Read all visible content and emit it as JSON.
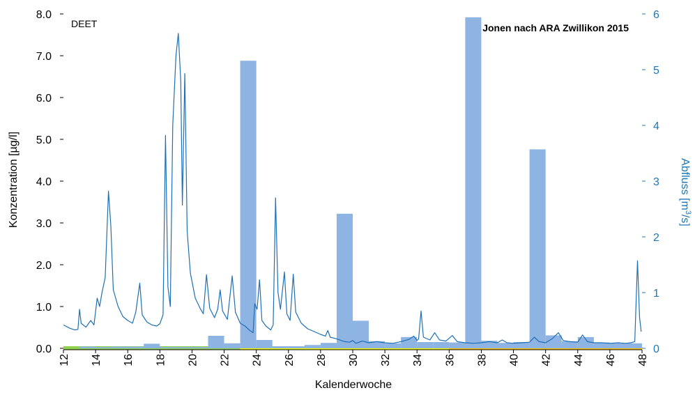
{
  "chart_data": {
    "type": "bar",
    "title": "Jonen nach ARA Zwillikon 2015",
    "annotation": "DEET",
    "xlabel": "Kalenderwoche",
    "ylabel": "Konzentration [µg/l]",
    "y2label_parts": [
      "Abfluss [m",
      "3",
      "/s]"
    ],
    "xlim": [
      12,
      48
    ],
    "ylim": [
      0,
      8
    ],
    "y2lim": [
      0,
      6
    ],
    "x_ticks": [
      12,
      14,
      16,
      18,
      20,
      22,
      24,
      26,
      28,
      30,
      32,
      34,
      36,
      38,
      40,
      42,
      44,
      46,
      48
    ],
    "y_ticks": [
      "0.0",
      "1.0",
      "2.0",
      "3.0",
      "4.0",
      "5.0",
      "6.0",
      "7.0",
      "8.0"
    ],
    "y2_ticks": [
      "0",
      "1",
      "2",
      "3",
      "4",
      "5",
      "6"
    ],
    "colors": {
      "bars": "#8eb4e3",
      "line": "#1f6fb4",
      "right_axis": "#1f77b4",
      "strip_green": "#92d050",
      "strip_yellow": "#ffff00",
      "strip_orange": "#ffc000"
    },
    "series": [
      {
        "name": "Konzentration",
        "axis": "left",
        "kind": "bar",
        "values": [
          {
            "x0": 13,
            "x1": 14,
            "y": 0.04
          },
          {
            "x0": 14,
            "x1": 15,
            "y": 0.03
          },
          {
            "x0": 15,
            "x1": 16,
            "y": 0.04
          },
          {
            "x0": 16,
            "x1": 17,
            "y": 0.04
          },
          {
            "x0": 17,
            "x1": 18,
            "y": 0.11
          },
          {
            "x0": 18,
            "x1": 19,
            "y": 0.03
          },
          {
            "x0": 19,
            "x1": 20,
            "y": 0.03
          },
          {
            "x0": 20,
            "x1": 21,
            "y": 0.03
          },
          {
            "x0": 21,
            "x1": 22,
            "y": 0.3
          },
          {
            "x0": 22,
            "x1": 23,
            "y": 0.12
          },
          {
            "x0": 23,
            "x1": 24,
            "y": 6.88
          },
          {
            "x0": 24,
            "x1": 25,
            "y": 0.2
          },
          {
            "x0": 25,
            "x1": 26,
            "y": 0.05
          },
          {
            "x0": 26,
            "x1": 27,
            "y": 0.05
          },
          {
            "x0": 27,
            "x1": 28,
            "y": 0.08
          },
          {
            "x0": 28,
            "x1": 29,
            "y": 0.13
          },
          {
            "x0": 29,
            "x1": 30,
            "y": 3.22
          },
          {
            "x0": 30,
            "x1": 31,
            "y": 0.66
          },
          {
            "x0": 31,
            "x1": 32,
            "y": 0.17
          },
          {
            "x0": 32,
            "x1": 33,
            "y": 0.12
          },
          {
            "x0": 33,
            "x1": 34,
            "y": 0.27
          },
          {
            "x0": 34,
            "x1": 35,
            "y": 0.15
          },
          {
            "x0": 35,
            "x1": 36,
            "y": 0.15
          },
          {
            "x0": 36,
            "x1": 37,
            "y": 0.14
          },
          {
            "x0": 37,
            "x1": 38,
            "y": 7.92
          },
          {
            "x0": 38,
            "x1": 39,
            "y": 0.18
          },
          {
            "x0": 39,
            "x1": 40,
            "y": 0.13
          },
          {
            "x0": 40,
            "x1": 41,
            "y": 0.15
          },
          {
            "x0": 41,
            "x1": 42,
            "y": 4.76
          },
          {
            "x0": 42,
            "x1": 43,
            "y": 0.31
          },
          {
            "x0": 43,
            "x1": 44,
            "y": 0.17
          },
          {
            "x0": 44,
            "x1": 45,
            "y": 0.27
          },
          {
            "x0": 45,
            "x1": 46,
            "y": 0.14
          },
          {
            "x0": 46,
            "x1": 47,
            "y": 0.12
          },
          {
            "x0": 47,
            "x1": 48,
            "y": 0.12
          }
        ]
      },
      {
        "name": "Abfluss",
        "axis": "right",
        "kind": "line",
        "points": [
          [
            12.0,
            0.42
          ],
          [
            12.4,
            0.36
          ],
          [
            12.7,
            0.33
          ],
          [
            12.9,
            0.34
          ],
          [
            13.0,
            0.7
          ],
          [
            13.1,
            0.45
          ],
          [
            13.4,
            0.38
          ],
          [
            13.7,
            0.5
          ],
          [
            13.9,
            0.42
          ],
          [
            14.1,
            0.9
          ],
          [
            14.25,
            0.75
          ],
          [
            14.4,
            1.0
          ],
          [
            14.6,
            1.27
          ],
          [
            14.8,
            2.82
          ],
          [
            14.95,
            2.2
          ],
          [
            15.1,
            1.05
          ],
          [
            15.4,
            0.75
          ],
          [
            15.7,
            0.57
          ],
          [
            16.0,
            0.5
          ],
          [
            16.3,
            0.45
          ],
          [
            16.5,
            0.65
          ],
          [
            16.75,
            1.17
          ],
          [
            16.9,
            0.6
          ],
          [
            17.2,
            0.47
          ],
          [
            17.5,
            0.42
          ],
          [
            17.8,
            0.4
          ],
          [
            18.0,
            0.44
          ],
          [
            18.2,
            0.6
          ],
          [
            18.35,
            3.82
          ],
          [
            18.5,
            1.1
          ],
          [
            18.65,
            0.75
          ],
          [
            18.8,
            4.0
          ],
          [
            19.0,
            5.25
          ],
          [
            19.15,
            5.65
          ],
          [
            19.3,
            4.8
          ],
          [
            19.4,
            2.57
          ],
          [
            19.55,
            4.93
          ],
          [
            19.7,
            2.1
          ],
          [
            19.9,
            1.35
          ],
          [
            20.2,
            0.9
          ],
          [
            20.5,
            0.72
          ],
          [
            20.7,
            0.62
          ],
          [
            20.9,
            1.32
          ],
          [
            21.1,
            0.72
          ],
          [
            21.4,
            0.55
          ],
          [
            21.6,
            0.7
          ],
          [
            21.75,
            1.05
          ],
          [
            21.9,
            0.67
          ],
          [
            22.2,
            0.52
          ],
          [
            22.5,
            1.3
          ],
          [
            22.7,
            0.65
          ],
          [
            23.0,
            0.45
          ],
          [
            23.3,
            0.4
          ],
          [
            23.6,
            0.32
          ],
          [
            23.8,
            0.28
          ],
          [
            23.9,
            0.8
          ],
          [
            24.05,
            0.7
          ],
          [
            24.2,
            1.23
          ],
          [
            24.35,
            0.5
          ],
          [
            24.6,
            0.4
          ],
          [
            24.9,
            0.33
          ],
          [
            25.05,
            0.42
          ],
          [
            25.2,
            2.7
          ],
          [
            25.35,
            1.0
          ],
          [
            25.5,
            0.7
          ],
          [
            25.75,
            1.37
          ],
          [
            25.9,
            0.62
          ],
          [
            26.1,
            0.5
          ],
          [
            26.3,
            1.33
          ],
          [
            26.45,
            0.65
          ],
          [
            26.8,
            0.45
          ],
          [
            27.2,
            0.35
          ],
          [
            27.6,
            0.3
          ],
          [
            28.0,
            0.25
          ],
          [
            28.3,
            0.22
          ],
          [
            28.45,
            0.32
          ],
          [
            28.6,
            0.2
          ],
          [
            29.0,
            0.17
          ],
          [
            29.5,
            0.12
          ],
          [
            29.8,
            0.11
          ],
          [
            30.0,
            0.14
          ],
          [
            30.2,
            0.09
          ],
          [
            30.6,
            0.13
          ],
          [
            31.0,
            0.1
          ],
          [
            31.5,
            0.12
          ],
          [
            32.0,
            0.1
          ],
          [
            32.5,
            0.09
          ],
          [
            33.0,
            0.12
          ],
          [
            33.5,
            0.16
          ],
          [
            33.8,
            0.22
          ],
          [
            34.0,
            0.14
          ],
          [
            34.1,
            0.17
          ],
          [
            34.25,
            0.67
          ],
          [
            34.4,
            0.2
          ],
          [
            34.8,
            0.15
          ],
          [
            35.1,
            0.28
          ],
          [
            35.4,
            0.15
          ],
          [
            35.8,
            0.13
          ],
          [
            36.2,
            0.23
          ],
          [
            36.5,
            0.12
          ],
          [
            37.0,
            0.1
          ],
          [
            37.5,
            0.09
          ],
          [
            38.0,
            0.1
          ],
          [
            38.5,
            0.12
          ],
          [
            39.0,
            0.1
          ],
          [
            39.3,
            0.15
          ],
          [
            39.6,
            0.1
          ],
          [
            40.0,
            0.09
          ],
          [
            40.5,
            0.1
          ],
          [
            41.0,
            0.11
          ],
          [
            41.3,
            0.2
          ],
          [
            41.6,
            0.12
          ],
          [
            42.0,
            0.1
          ],
          [
            42.4,
            0.17
          ],
          [
            42.8,
            0.28
          ],
          [
            43.1,
            0.14
          ],
          [
            43.5,
            0.12
          ],
          [
            44.0,
            0.11
          ],
          [
            44.3,
            0.24
          ],
          [
            44.6,
            0.12
          ],
          [
            45.0,
            0.1
          ],
          [
            45.5,
            0.1
          ],
          [
            46.0,
            0.09
          ],
          [
            46.5,
            0.1
          ],
          [
            47.0,
            0.09
          ],
          [
            47.3,
            0.1
          ],
          [
            47.55,
            0.12
          ],
          [
            47.72,
            1.57
          ],
          [
            47.85,
            0.55
          ],
          [
            47.95,
            0.3
          ]
        ]
      }
    ],
    "season_strip": [
      {
        "x0": 12,
        "x1": 23,
        "color_key": "strip_green"
      },
      {
        "x0": 23,
        "x1": 36,
        "color_key": "strip_yellow"
      },
      {
        "x0": 36,
        "x1": 48,
        "color_key": "strip_orange"
      }
    ]
  }
}
